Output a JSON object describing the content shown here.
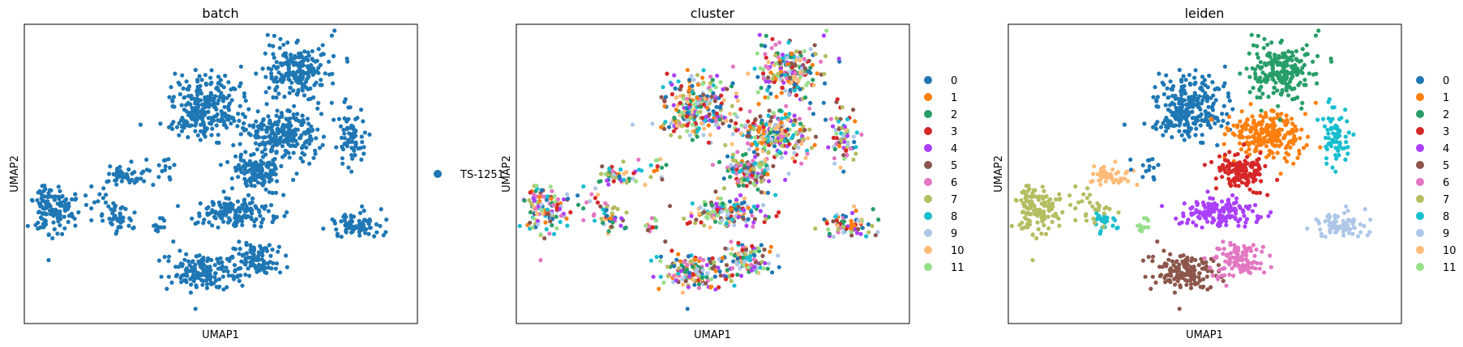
{
  "palette": [
    "#1f77b4",
    "#ff7f0e",
    "#279e68",
    "#d62728",
    "#aa40fc",
    "#8c564b",
    "#e377c2",
    "#b5bd61",
    "#17becf",
    "#aec7e8",
    "#ffbb78",
    "#98df8a"
  ],
  "chart_data": [
    {
      "type": "scatter",
      "title": "batch",
      "xlabel": "UMAP1",
      "ylabel": "UMAP2",
      "xlim": [
        -9,
        13
      ],
      "ylim": [
        -3,
        17
      ],
      "legend": {
        "placement": "right",
        "entries": [
          "TS-1251"
        ]
      }
    },
    {
      "type": "scatter",
      "title": "cluster",
      "xlabel": "UMAP1",
      "ylabel": "UMAP2",
      "xlim": [
        -9,
        13
      ],
      "ylim": [
        -3,
        17
      ],
      "legend": {
        "placement": "right",
        "entries": [
          "0",
          "1",
          "2",
          "3",
          "4",
          "5",
          "6",
          "7",
          "8",
          "9",
          "10",
          "11"
        ]
      }
    },
    {
      "type": "scatter",
      "title": "leiden",
      "xlabel": "UMAP1",
      "ylabel": "UMAP2",
      "xlim": [
        -9,
        13
      ],
      "ylim": [
        -3,
        17
      ],
      "legend": {
        "placement": "right",
        "entries": [
          "0",
          "1",
          "2",
          "3",
          "4",
          "5",
          "6",
          "7",
          "8",
          "9",
          "10",
          "11"
        ]
      }
    }
  ]
}
